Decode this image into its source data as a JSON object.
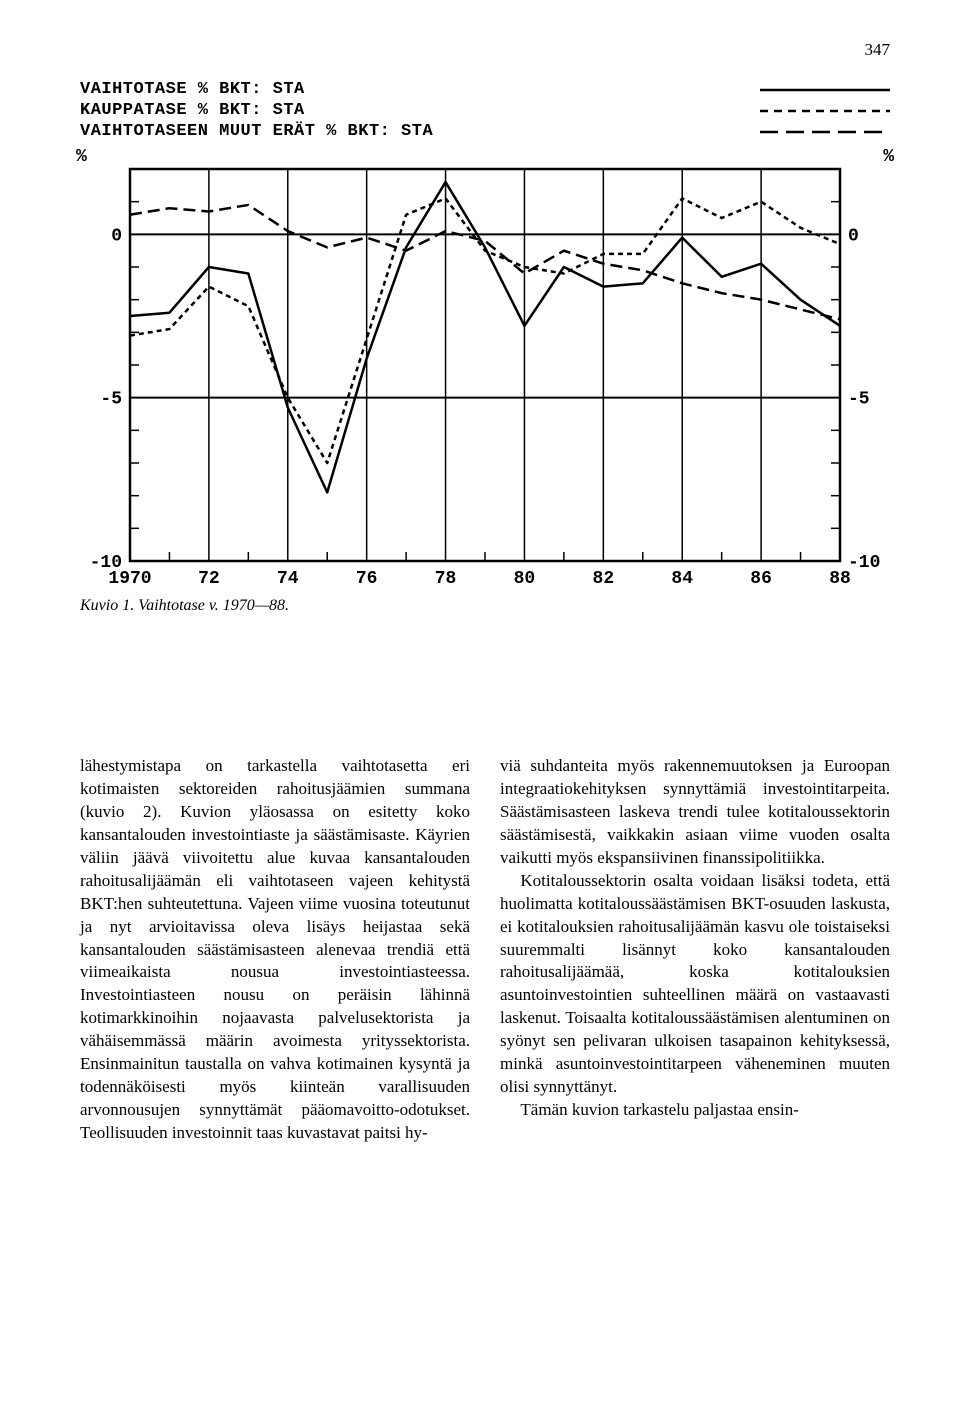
{
  "page_number": "347",
  "legend": {
    "items": [
      {
        "label": "VAIHTOTASE % BKT: STA",
        "style": "solid"
      },
      {
        "label": "KAUPPATASE % BKT: STA",
        "style": "short-dash"
      },
      {
        "label": "VAIHTOTASEEN MUUT ERÄT % BKT: STA",
        "style": "long-dash"
      }
    ]
  },
  "chart": {
    "type": "line",
    "x_years": [
      1970,
      1971,
      1972,
      1973,
      1974,
      1975,
      1976,
      1977,
      1978,
      1979,
      1980,
      1981,
      1982,
      1983,
      1984,
      1985,
      1986,
      1987,
      1988
    ],
    "x_tick_labels": [
      "1970",
      "72",
      "74",
      "76",
      "78",
      "80",
      "82",
      "84",
      "86",
      "88"
    ],
    "x_tick_years": [
      1970,
      1972,
      1974,
      1976,
      1978,
      1980,
      1982,
      1984,
      1986,
      1988
    ],
    "y_min": -10,
    "y_max": 2,
    "y_ticks": [
      0,
      -5,
      -10
    ],
    "y_minor_ticks": [
      -1,
      -2,
      -3,
      -4,
      -6,
      -7,
      -8,
      -9,
      1
    ],
    "y_axis_unit": "%",
    "background_color": "#ffffff",
    "axis_color": "#000000",
    "line_width": 2.5,
    "series": {
      "vaihtotase": {
        "color": "#000000",
        "dash": "none",
        "values": [
          -2.5,
          -2.4,
          -1.0,
          -1.2,
          -5.3,
          -7.9,
          -3.8,
          -0.4,
          1.6,
          -0.4,
          -2.8,
          -1.0,
          -1.6,
          -1.5,
          -0.1,
          -1.3,
          -0.9,
          -2.0,
          -2.8
        ]
      },
      "kauppatase": {
        "color": "#000000",
        "dash": "5,4",
        "values": [
          -3.1,
          -2.9,
          -1.6,
          -2.2,
          -5.0,
          -7.0,
          -3.2,
          0.6,
          1.1,
          -0.5,
          -1.0,
          -1.2,
          -0.6,
          -0.6,
          1.1,
          0.5,
          1.0,
          0.2,
          -0.3
        ]
      },
      "muut_erat": {
        "color": "#000000",
        "dash": "12,6",
        "values": [
          0.6,
          0.8,
          0.7,
          0.9,
          0.1,
          -0.4,
          -0.1,
          -0.5,
          0.1,
          -0.2,
          -1.2,
          -0.5,
          -0.9,
          -1.1,
          -1.5,
          -1.8,
          -2.0,
          -2.3,
          -2.6
        ]
      }
    }
  },
  "caption": "Kuvio 1. Vaihtotase v. 1970—88.",
  "text": {
    "col1_p1": "lähestymistapa on tarkastella vaihtotasetta eri kotimaisten sektoreiden rahoitusjäämien summana (kuvio 2). Kuvion yläosassa on esitetty koko kansantalouden investointiaste ja säästämisaste. Käyrien väliin jäävä viivoitettu alue kuvaa kansantalouden rahoitusalijäämän eli vaihtotaseen vajeen kehitystä BKT:hen suhteutettuna. Vajeen viime vuosina toteutunut ja nyt arvioitavissa oleva lisäys heijastaa sekä kansantalouden säästämisasteen alenevaa trendiä että viimeaikaista nousua investointiasteessa. Investointiasteen nousu on peräisin lähinnä kotimarkkinoihin nojaavasta palvelusektorista ja vähäisemmässä määrin avoimesta yrityssektorista. Ensinmainitun taustalla on vahva kotimainen kysyntä ja todennäköisesti myös kiinteän varallisuuden arvonnousujen synnyttämät pääomavoitto-odotukset. Teollisuuden investoinnit taas kuvastavat paitsi hy-",
    "col2_p1": "viä suhdanteita myös rakennemuutoksen ja Euroopan integraatiokehityksen synnyttämiä investointitarpeita. Säästämisasteen laskeva trendi tulee kotitaloussektorin säästämisestä, vaikkakin asiaan viime vuoden osalta vaikutti myös ekspansiivinen finanssipolitiikka.",
    "col2_p2": "Kotitaloussektorin osalta voidaan lisäksi todeta, että huolimatta kotitaloussäästämisen BKT-osuuden laskusta, ei kotitalouksien rahoitusalijäämän kasvu ole toistaiseksi suuremmalti lisännyt koko kansantalouden rahoitusalijäämää, koska kotitalouksien asuntoinvestointien suhteellinen määrä on vastaavasti laskenut. Toisaalta kotitaloussäästämisen alentuminen on syönyt sen pelivaran ulkoisen tasapainon kehityksessä, minkä asuntoinvestointitarpeen väheneminen muuten olisi synnyttänyt.",
    "col2_p3": "Tämän kuvion tarkastelu paljastaa ensin-"
  }
}
